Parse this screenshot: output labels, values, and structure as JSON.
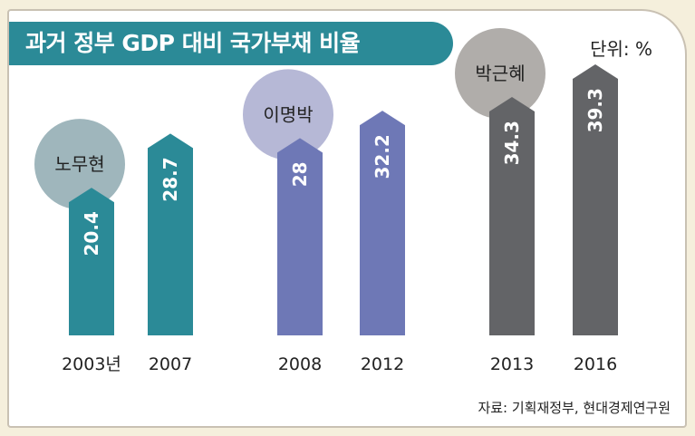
{
  "title": "과거 정부 GDP 대비 국가부채 비율",
  "unit": "단위: %",
  "source": "자료: 기획재정부, 현대경제연구원",
  "chart_data": {
    "type": "bar",
    "title": "과거 정부 GDP 대비 국가부채 비율",
    "categories": [
      "2003년",
      "2007",
      "2008",
      "2012",
      "2013",
      "2016"
    ],
    "values": [
      20.4,
      28.7,
      28,
      32.2,
      34.3,
      39.3
    ],
    "value_labels": [
      "20.4",
      "28.7",
      "28",
      "32.2",
      "34.3",
      "39.3"
    ],
    "groups": [
      {
        "name": "노무현",
        "indices": [
          0,
          1
        ],
        "bar_color": "#2b8a97",
        "bubble_color": "#9fb6bc"
      },
      {
        "name": "이명박",
        "indices": [
          2,
          3
        ],
        "bar_color": "#6e78b6",
        "bubble_color": "#b6b8d6"
      },
      {
        "name": "박근혜",
        "indices": [
          4,
          5
        ],
        "bar_color": "#636467",
        "bubble_color": "#b0adaa"
      }
    ]
  }
}
